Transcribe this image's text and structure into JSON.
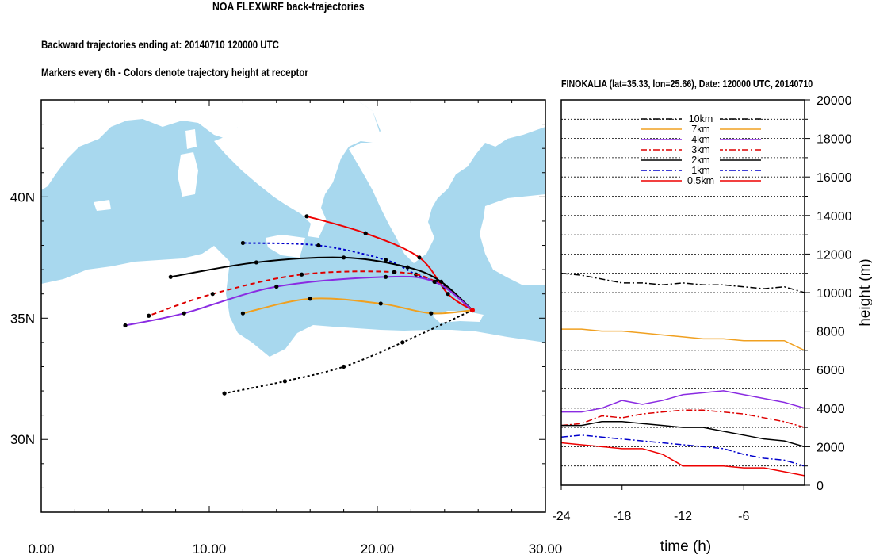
{
  "main_title": "NOA FLEXWRF back-trajectories",
  "subtitle_1": "Backward trajectories ending at: 20140710  120000 UTC",
  "subtitle_2": "Markers every 6h - Colors denote trajectory height at receptor",
  "colors": {
    "sea": "#a8d8ee",
    "land": "#ffffff",
    "10km": "#000000",
    "7km": "#f0a020",
    "4km": "#8a2be2",
    "3km": "#dd0000",
    "2km": "#000000",
    "1km": "#0000cc",
    "0.5km": "#ee0000"
  },
  "chart_data": [
    {
      "type": "line",
      "chart_kind": "trajectory-map",
      "xlim": [
        0,
        30
      ],
      "ylim": [
        27,
        44
      ],
      "x_ticks": [
        "0.00",
        "10.00",
        "20.00",
        "30.00"
      ],
      "x_tick_values": [
        0,
        10,
        20,
        30
      ],
      "y_ticks": [
        "30N",
        "35N",
        "40N"
      ],
      "y_tick_values": [
        30,
        35,
        40
      ],
      "receptor": {
        "lon": 25.66,
        "lat": 35.33
      },
      "series": [
        {
          "key": "0.5km",
          "style": "solid",
          "x": [
            25.66,
            24.2,
            22.5,
            19.3,
            15.8
          ],
          "y": [
            35.33,
            36.0,
            37.5,
            38.5,
            39.2
          ]
        },
        {
          "key": "1km",
          "style": "dotted",
          "x": [
            25.66,
            24.0,
            22.3,
            20.5,
            16.5,
            12.0
          ],
          "y": [
            35.33,
            36.3,
            36.8,
            37.4,
            38.0,
            38.1
          ]
        },
        {
          "key": "2km",
          "style": "solid",
          "x": [
            25.66,
            23.8,
            21.8,
            18.0,
            12.8,
            7.7
          ],
          "y": [
            35.33,
            36.5,
            37.1,
            37.5,
            37.3,
            36.7
          ]
        },
        {
          "key": "3km",
          "style": "dashed",
          "x": [
            25.66,
            23.5,
            21.0,
            15.5,
            10.2,
            6.4
          ],
          "y": [
            35.33,
            36.5,
            36.9,
            36.8,
            36.0,
            35.1
          ]
        },
        {
          "key": "4km",
          "style": "solid",
          "x": [
            25.66,
            23.4,
            20.5,
            14.0,
            8.5,
            5.0
          ],
          "y": [
            35.33,
            36.5,
            36.7,
            36.3,
            35.2,
            34.7
          ]
        },
        {
          "key": "7km",
          "style": "solid",
          "x": [
            25.66,
            23.2,
            20.2,
            16.0,
            12.0
          ],
          "y": [
            35.33,
            35.2,
            35.6,
            35.8,
            35.2
          ]
        },
        {
          "key": "10km",
          "style": "dotted",
          "x": [
            25.66,
            21.5,
            18.0,
            14.5,
            10.9
          ],
          "y": [
            35.33,
            34.0,
            33.0,
            32.4,
            31.9
          ]
        }
      ]
    },
    {
      "type": "line",
      "title": "FINOKALIA (lat=35.33,  lon=25.66), Date: 120000 UTC, 20140710",
      "xlabel": "time (h)",
      "ylabel": "height (m)",
      "xlim": [
        -24,
        0
      ],
      "ylim": [
        0,
        20000
      ],
      "x_ticks": [
        "-24",
        "-18",
        "-12",
        "-6"
      ],
      "x_tick_values": [
        -24,
        -18,
        -12,
        -6
      ],
      "y_ticks": [
        "0",
        "2000",
        "4000",
        "6000",
        "8000",
        "10000",
        "12000",
        "14000",
        "16000",
        "18000",
        "20000"
      ],
      "y_tick_values": [
        0,
        2000,
        4000,
        6000,
        8000,
        10000,
        12000,
        14000,
        16000,
        18000,
        20000
      ],
      "legend_position": "top",
      "x": [
        -24,
        -22,
        -20,
        -18,
        -16,
        -14,
        -12,
        -10,
        -8,
        -6,
        -4,
        -2,
        0
      ],
      "series": [
        {
          "name": "10km",
          "key": "10km",
          "style": "dashdot",
          "values": [
            11000,
            10900,
            10700,
            10500,
            10500,
            10400,
            10500,
            10400,
            10400,
            10300,
            10200,
            10300,
            10000
          ]
        },
        {
          "name": "7km",
          "key": "7km",
          "style": "solid",
          "values": [
            8100,
            8100,
            8000,
            8000,
            7900,
            7800,
            7700,
            7600,
            7600,
            7500,
            7500,
            7500,
            7000
          ]
        },
        {
          "name": "4km",
          "key": "4km",
          "style": "solid",
          "values": [
            3800,
            3800,
            4000,
            4400,
            4200,
            4400,
            4700,
            4800,
            4900,
            4700,
            4500,
            4300,
            4000
          ]
        },
        {
          "name": "3km",
          "key": "3km",
          "style": "dashdot",
          "values": [
            3100,
            3200,
            3600,
            3500,
            3700,
            3800,
            3900,
            3900,
            3800,
            3700,
            3500,
            3300,
            3000
          ]
        },
        {
          "name": "2km",
          "key": "2km",
          "style": "solid",
          "values": [
            3100,
            3100,
            3300,
            3300,
            3200,
            3100,
            3000,
            3000,
            2800,
            2600,
            2400,
            2300,
            2000
          ]
        },
        {
          "name": "1km",
          "key": "1km",
          "style": "dashdot",
          "values": [
            2500,
            2600,
            2500,
            2400,
            2300,
            2200,
            2100,
            2000,
            1900,
            1600,
            1400,
            1300,
            1000
          ]
        },
        {
          "name": "0.5km",
          "key": "0.5km",
          "style": "solid",
          "values": [
            2200,
            2100,
            2000,
            1900,
            1900,
            1600,
            1000,
            1000,
            1000,
            900,
            900,
            700,
            500
          ]
        }
      ]
    }
  ]
}
